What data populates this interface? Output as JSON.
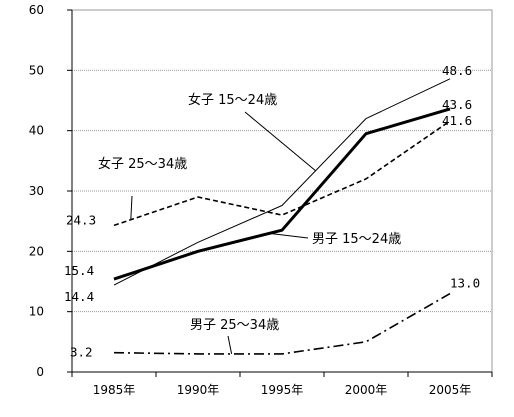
{
  "chart_data": {
    "type": "line",
    "title": "",
    "xlabel": "",
    "ylabel": "",
    "categories": [
      "1985年",
      "1990年",
      "1995年",
      "2000年",
      "2005年"
    ],
    "ylim": [
      0,
      60
    ],
    "yticks": [
      0,
      10,
      20,
      30,
      40,
      50,
      60
    ],
    "grid": true,
    "series": [
      {
        "name": "女子 15～24歳",
        "values": [
          14.4,
          21.5,
          27.6,
          42.0,
          48.6
        ],
        "style": "thin-solid",
        "labels": [
          {
            "index": 0,
            "text": "14.4"
          },
          {
            "index": 4,
            "text": "48.6"
          }
        ]
      },
      {
        "name": "男子 15～24歳",
        "values": [
          15.4,
          20.0,
          23.5,
          39.5,
          43.6
        ],
        "style": "thick-solid",
        "labels": [
          {
            "index": 0,
            "text": "15.4"
          },
          {
            "index": 4,
            "text": "43.6"
          }
        ]
      },
      {
        "name": "女子 25～34歳",
        "values": [
          24.3,
          29.0,
          26.0,
          32.0,
          41.6
        ],
        "style": "dashed",
        "labels": [
          {
            "index": 0,
            "text": "24.3"
          },
          {
            "index": 4,
            "text": "41.6"
          }
        ]
      },
      {
        "name": "男子 25～34歳",
        "values": [
          3.2,
          3.0,
          3.0,
          5.0,
          13.0
        ],
        "style": "dash-dot",
        "labels": [
          {
            "index": 0,
            "text": "3.2"
          },
          {
            "index": 4,
            "text": "13.0"
          }
        ]
      }
    ],
    "colors": {
      "line": "#000000",
      "grid": "#9a9a9a",
      "axis": "#000000"
    }
  }
}
